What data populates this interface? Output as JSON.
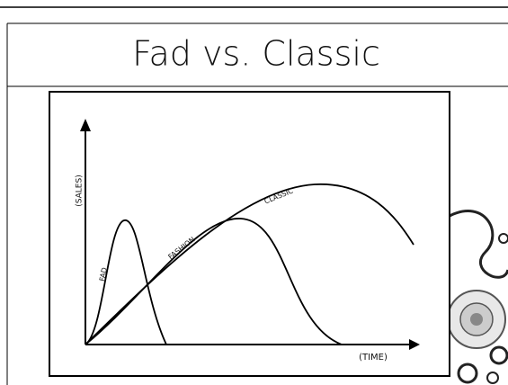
{
  "slide": {
    "title": "Fad vs. Classic"
  },
  "diagram": {
    "y_axis_label": "(SALES)",
    "x_axis_label": "(TIME)",
    "curves": [
      {
        "label": "FAD"
      },
      {
        "label": "FASHION"
      },
      {
        "label": "CLASSIC"
      }
    ]
  }
}
